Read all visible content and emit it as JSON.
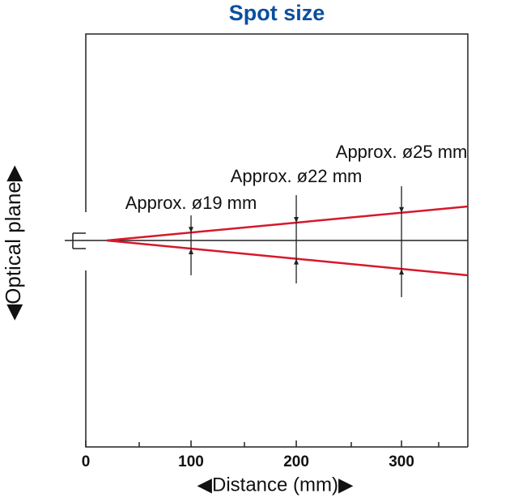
{
  "chart_data": {
    "type": "beam",
    "title": "Spot size",
    "title_color": "#0a4f9e",
    "x_label": "◀Distance (mm)▶",
    "y_label": "◀Optical plane▶",
    "xlim": [
      0,
      363
    ],
    "xticks": [
      0,
      100,
      200,
      300
    ],
    "beam_color": "#d7182a",
    "annotations": [
      {
        "x": 100,
        "text": "Approx. ø19 mm"
      },
      {
        "x": 200,
        "text": "Approx. ø22 mm"
      },
      {
        "x": 300,
        "text": "Approx. ø25 mm"
      }
    ]
  }
}
